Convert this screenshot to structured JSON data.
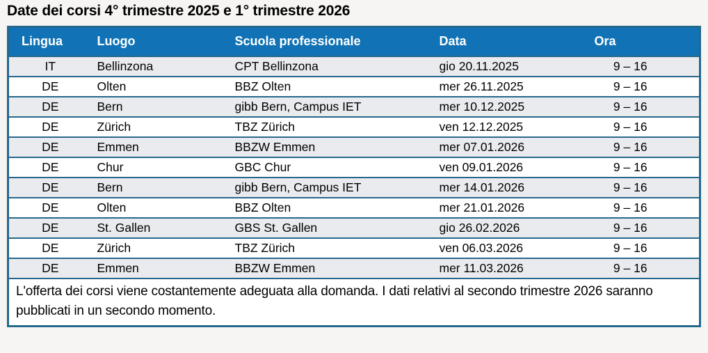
{
  "title": "Date dei corsi 4° trimestre 2025 e 1° trimestre 2026",
  "table": {
    "columns": [
      "Lingua",
      "Luogo",
      "Scuola professionale",
      "Data",
      "Ora"
    ],
    "rows": [
      [
        "IT",
        "Bellinzona",
        "CPT Bellinzona",
        "gio 20.11.2025",
        "9 – 16"
      ],
      [
        "DE",
        "Olten",
        "BBZ Olten",
        "mer 26.11.2025",
        "9 – 16"
      ],
      [
        "DE",
        "Bern",
        "gibb Bern, Campus IET",
        "mer 10.12.2025",
        "9 – 16"
      ],
      [
        "DE",
        "Zürich",
        "TBZ Zürich",
        "ven 12.12.2025",
        "9 – 16"
      ],
      [
        "DE",
        "Emmen",
        "BBZW Emmen",
        "mer 07.01.2026",
        "9 – 16"
      ],
      [
        "DE",
        "Chur",
        "GBC Chur",
        "ven 09.01.2026",
        "9 – 16"
      ],
      [
        "DE",
        "Bern",
        "gibb Bern, Campus IET",
        "mer 14.01.2026",
        "9 – 16"
      ],
      [
        "DE",
        "Olten",
        "BBZ Olten",
        "mer 21.01.2026",
        "9 – 16"
      ],
      [
        "DE",
        "St. Gallen",
        "GBS St. Gallen",
        "gio 26.02.2026",
        "9 – 16"
      ],
      [
        "DE",
        "Zürich",
        "TBZ Zürich",
        "ven 06.03.2026",
        "9 – 16"
      ],
      [
        "DE",
        "Emmen",
        "BBZW Emmen",
        "mer 11.03.2026",
        "9 – 16"
      ]
    ],
    "note": "L'offerta dei corsi viene costantemente adeguata alla domanda. I dati relativi al secondo trimestre 2026 saranno pubblicati in un secondo momento."
  },
  "colors": {
    "header_bg": "#1173b5",
    "header_text": "#ffffff",
    "border": "#26678c",
    "row_shaded": "#e9ebee",
    "row_white": "#ffffff",
    "page_bg": "#f6f5f3"
  }
}
